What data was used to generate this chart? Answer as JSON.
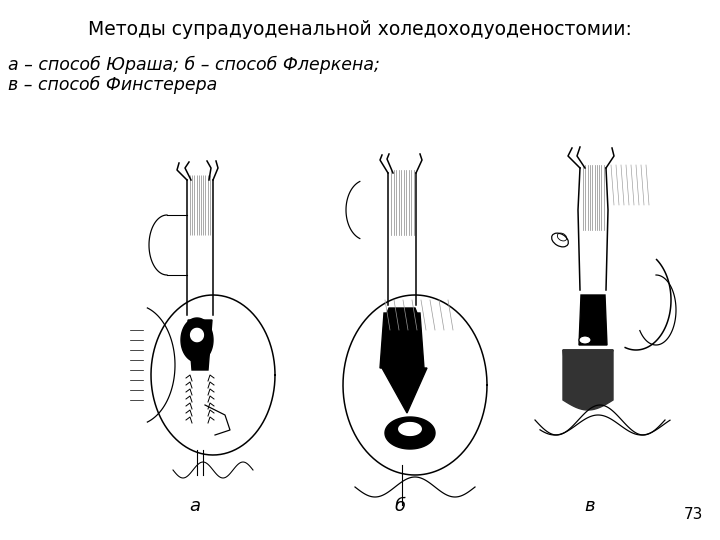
{
  "title": "Методы супрадуоденальной холедоходуоденостомии:",
  "subtitle_line1": "а – способ Юраша; б – способ Флеркена;",
  "subtitle_line2": "в – способ Финстерера",
  "label_a": "а",
  "label_b": "б",
  "label_c": "в",
  "page_number": "73",
  "bg_color": "#ffffff",
  "title_fontsize": 13.5,
  "subtitle_fontsize": 12.5,
  "label_fontsize": 13,
  "page_fontsize": 11,
  "fig_width": 7.2,
  "fig_height": 5.4,
  "dpi": 100
}
